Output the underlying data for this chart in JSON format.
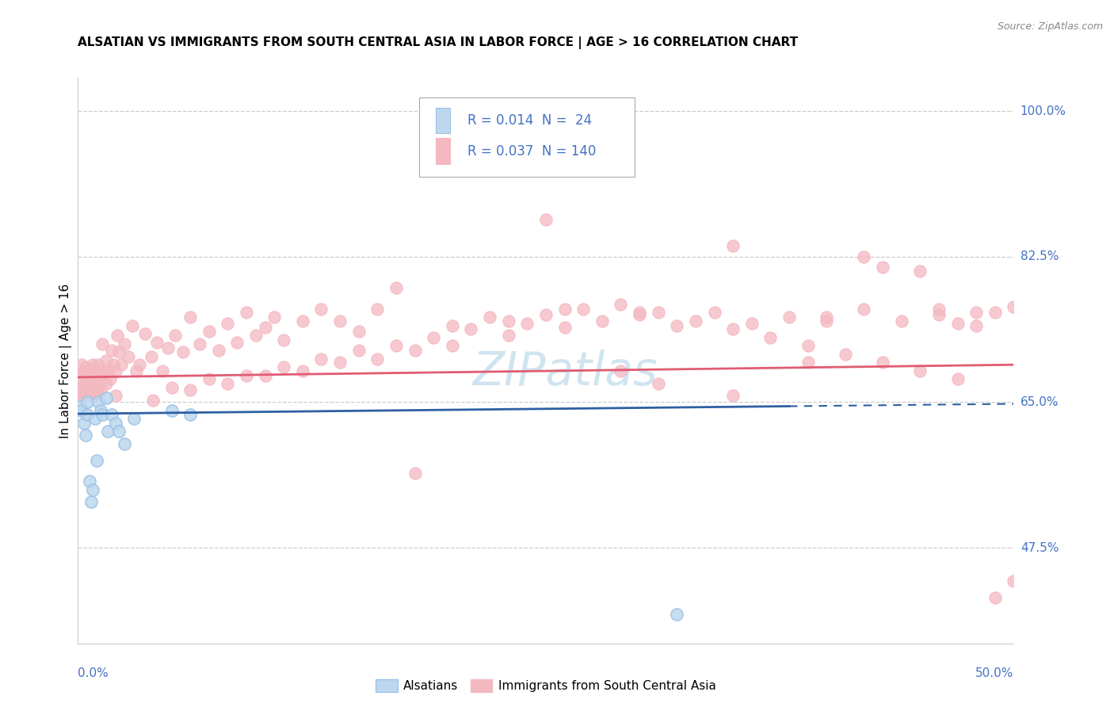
{
  "title": "ALSATIAN VS IMMIGRANTS FROM SOUTH CENTRAL ASIA IN LABOR FORCE | AGE > 16 CORRELATION CHART",
  "source": "Source: ZipAtlas.com",
  "ylabel": "In Labor Force | Age > 16",
  "xmin": 0.0,
  "xmax": 0.5,
  "ymin": 0.36,
  "ymax": 1.04,
  "hlines": [
    0.475,
    0.65,
    0.825,
    1.0
  ],
  "hline_color": "#cccccc",
  "right_labels": {
    "1.0": "100.0%",
    "0.825": "82.5%",
    "0.65": "65.0%",
    "0.475": "47.5%"
  },
  "legend_r1": "0.014",
  "legend_n1": "24",
  "legend_r2": "0.037",
  "legend_n2": "140",
  "label_color": "#4472c4",
  "blue_fill": "#bdd7ee",
  "blue_edge": "#9dc3e6",
  "pink_fill": "#f4b8c1",
  "pink_edge": "#f4b8c1",
  "trend_blue_color": "#2e5fa3",
  "trend_pink_color": "#e05c73",
  "watermark": "ZIPatlas",
  "watermark_color": "#d0e4f0",
  "blue_x": [
    0.001,
    0.002,
    0.003,
    0.004,
    0.005,
    0.005,
    0.006,
    0.007,
    0.008,
    0.009,
    0.01,
    0.011,
    0.012,
    0.013,
    0.015,
    0.016,
    0.018,
    0.02,
    0.022,
    0.025,
    0.03,
    0.05,
    0.06,
    0.32
  ],
  "blue_y": [
    0.645,
    0.64,
    0.625,
    0.61,
    0.65,
    0.635,
    0.555,
    0.53,
    0.545,
    0.63,
    0.58,
    0.65,
    0.64,
    0.635,
    0.655,
    0.615,
    0.635,
    0.625,
    0.615,
    0.6,
    0.63,
    0.64,
    0.635,
    0.395
  ],
  "pink_x": [
    0.001,
    0.001,
    0.002,
    0.002,
    0.002,
    0.003,
    0.003,
    0.003,
    0.004,
    0.004,
    0.004,
    0.005,
    0.005,
    0.005,
    0.006,
    0.006,
    0.006,
    0.007,
    0.007,
    0.008,
    0.008,
    0.008,
    0.009,
    0.009,
    0.01,
    0.01,
    0.011,
    0.011,
    0.012,
    0.012,
    0.013,
    0.014,
    0.015,
    0.015,
    0.016,
    0.017,
    0.018,
    0.019,
    0.02,
    0.021,
    0.022,
    0.023,
    0.025,
    0.027,
    0.029,
    0.031,
    0.033,
    0.036,
    0.039,
    0.042,
    0.045,
    0.048,
    0.052,
    0.056,
    0.06,
    0.065,
    0.07,
    0.075,
    0.08,
    0.085,
    0.09,
    0.095,
    0.1,
    0.105,
    0.11,
    0.12,
    0.13,
    0.14,
    0.15,
    0.16,
    0.17,
    0.18,
    0.2,
    0.22,
    0.24,
    0.26,
    0.28,
    0.3,
    0.32,
    0.34,
    0.36,
    0.38,
    0.4,
    0.42,
    0.44,
    0.46,
    0.48,
    0.49,
    0.25,
    0.3,
    0.35,
    0.4,
    0.45,
    0.5,
    0.42,
    0.39,
    0.46,
    0.47,
    0.48,
    0.43,
    0.35,
    0.31,
    0.29,
    0.26,
    0.23,
    0.2,
    0.18,
    0.16,
    0.14,
    0.12,
    0.1,
    0.08,
    0.06,
    0.04,
    0.02,
    0.01,
    0.05,
    0.07,
    0.09,
    0.11,
    0.13,
    0.15,
    0.17,
    0.19,
    0.21,
    0.23,
    0.25,
    0.27,
    0.29,
    0.31,
    0.33,
    0.35,
    0.37,
    0.39,
    0.41,
    0.43,
    0.45,
    0.47,
    0.49,
    0.5
  ],
  "pink_y": [
    0.68,
    0.66,
    0.685,
    0.665,
    0.695,
    0.67,
    0.688,
    0.658,
    0.672,
    0.692,
    0.66,
    0.685,
    0.668,
    0.678,
    0.672,
    0.69,
    0.66,
    0.683,
    0.668,
    0.678,
    0.695,
    0.66,
    0.688,
    0.668,
    0.682,
    0.665,
    0.695,
    0.672,
    0.688,
    0.665,
    0.72,
    0.685,
    0.7,
    0.672,
    0.688,
    0.678,
    0.712,
    0.695,
    0.688,
    0.73,
    0.71,
    0.695,
    0.72,
    0.705,
    0.742,
    0.688,
    0.695,
    0.732,
    0.705,
    0.722,
    0.688,
    0.715,
    0.73,
    0.71,
    0.752,
    0.72,
    0.735,
    0.712,
    0.745,
    0.722,
    0.758,
    0.73,
    0.74,
    0.752,
    0.725,
    0.748,
    0.762,
    0.748,
    0.735,
    0.762,
    0.788,
    0.565,
    0.742,
    0.752,
    0.745,
    0.762,
    0.748,
    0.755,
    0.742,
    0.758,
    0.745,
    0.752,
    0.748,
    0.762,
    0.748,
    0.755,
    0.742,
    0.758,
    0.87,
    0.758,
    0.838,
    0.752,
    0.808,
    0.765,
    0.825,
    0.698,
    0.762,
    0.745,
    0.758,
    0.812,
    0.658,
    0.672,
    0.688,
    0.74,
    0.73,
    0.718,
    0.712,
    0.702,
    0.698,
    0.688,
    0.682,
    0.672,
    0.665,
    0.652,
    0.658,
    0.66,
    0.668,
    0.678,
    0.682,
    0.692,
    0.702,
    0.712,
    0.718,
    0.728,
    0.738,
    0.748,
    0.755,
    0.762,
    0.768,
    0.758,
    0.748,
    0.738,
    0.728,
    0.718,
    0.708,
    0.698,
    0.688,
    0.678,
    0.415,
    0.435
  ]
}
